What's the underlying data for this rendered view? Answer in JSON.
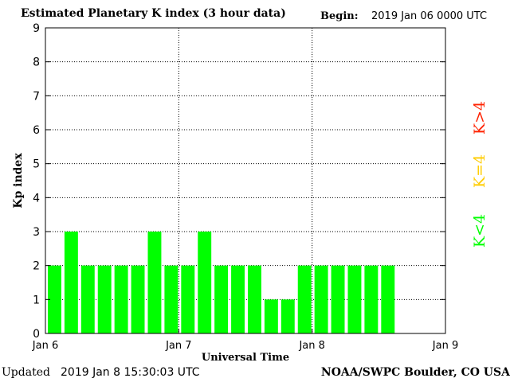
{
  "header": {
    "title": "Estimated Planetary K index (3 hour data)",
    "begin_label": "Begin:",
    "begin_value": "2019 Jan 06 0000 UTC"
  },
  "footer": {
    "updated_label": "Updated",
    "updated_value": "2019 Jan  8 15:30:03 UTC",
    "source": "NOAA/SWPC Boulder, CO USA"
  },
  "chart_data": {
    "type": "bar",
    "title": "Estimated Planetary K index (3 hour data)",
    "xlabel": "Universal Time",
    "ylabel": "Kp index",
    "ylim": [
      0,
      9
    ],
    "yticks": [
      "0",
      "1",
      "2",
      "3",
      "4",
      "5",
      "6",
      "7",
      "8",
      "9"
    ],
    "xticks": [
      "Jan 6",
      "Jan 7",
      "Jan 8",
      "Jan 9"
    ],
    "bar_interval_hours": 3,
    "values": [
      2,
      3,
      2,
      2,
      2,
      2,
      3,
      2,
      2,
      3,
      2,
      2,
      2,
      1,
      1,
      2,
      2,
      2,
      2,
      2,
      2
    ],
    "grid": true,
    "legend": [
      {
        "label": "K<4",
        "color": "#00ff00"
      },
      {
        "label": "K=4",
        "color": "#ffcc00"
      },
      {
        "label": "K>4",
        "color": "#ff2200"
      }
    ],
    "legend_position": "right",
    "colors": {
      "low": "#00ff00",
      "mid": "#ffcc00",
      "high": "#ff2200"
    }
  }
}
